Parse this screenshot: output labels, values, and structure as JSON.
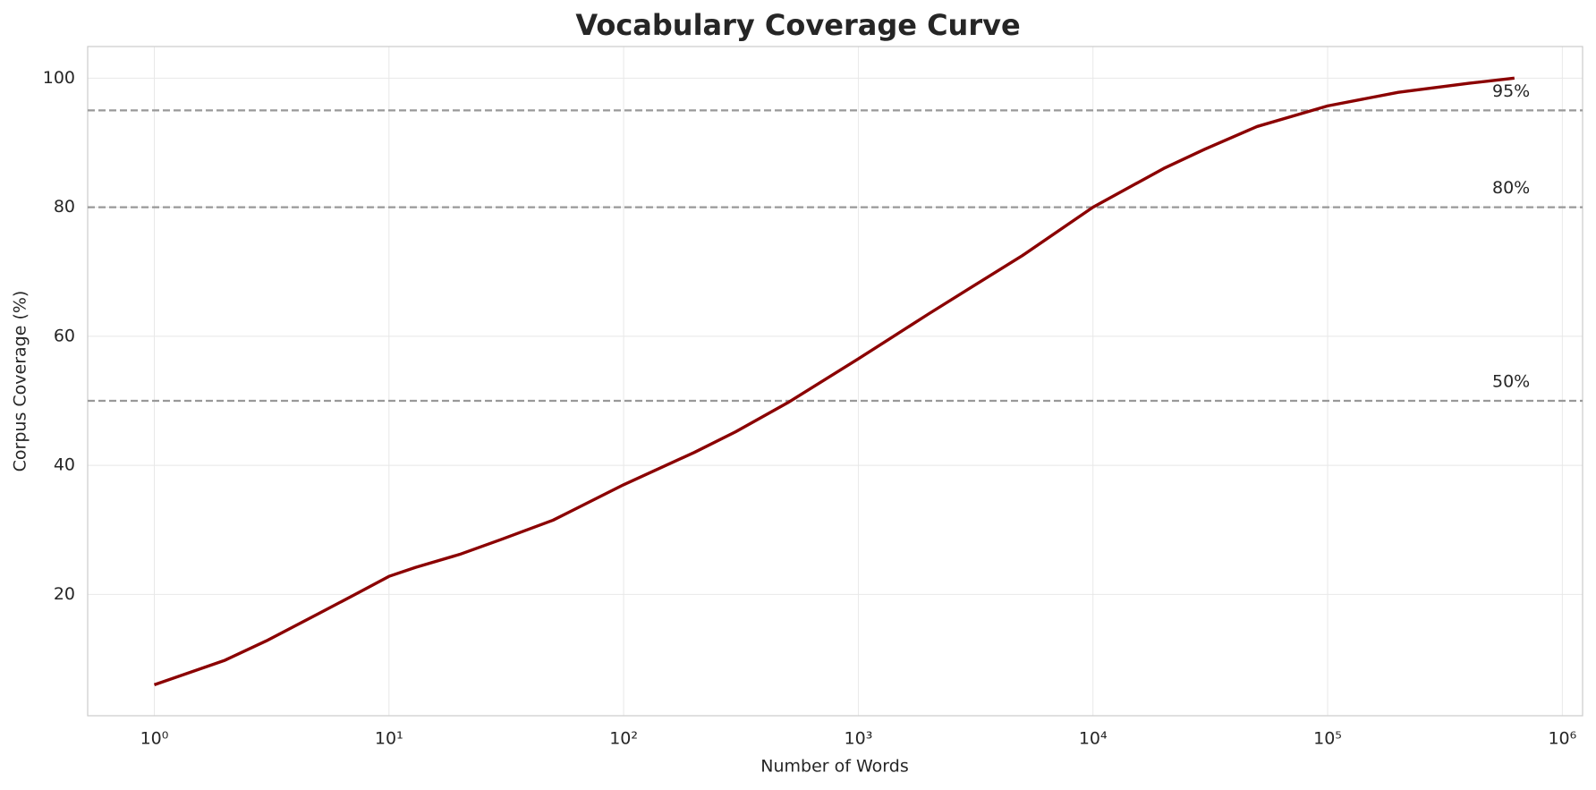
{
  "chart_data": {
    "type": "line",
    "title": "Vocabulary Coverage Curve",
    "xlabel": "Number of Words",
    "ylabel": "Corpus Coverage (%)",
    "xscale": "log",
    "grid": true,
    "x": [
      1,
      2,
      3,
      5,
      7,
      10,
      13,
      20,
      30,
      50,
      100,
      200,
      300,
      500,
      1000,
      2000,
      3000,
      5000,
      10000,
      20000,
      30000,
      50000,
      100000,
      200000,
      400000,
      625000
    ],
    "series": [
      {
        "color": "#8b0000",
        "values": [
          6,
          9.8,
          12.8,
          17,
          19.8,
          22.8,
          24.2,
          26.2,
          28.5,
          31.5,
          37,
          42,
          45.2,
          49.7,
          56.5,
          63.5,
          67.5,
          72.5,
          80,
          86,
          89,
          92.5,
          95.7,
          97.8,
          99.2,
          100
        ]
      }
    ],
    "xlim": [
      0.52,
      1220000
    ],
    "ylim": [
      1.2,
      104.9
    ],
    "xticks": [
      {
        "value": 1,
        "label": "10⁰"
      },
      {
        "value": 10,
        "label": "10¹"
      },
      {
        "value": 100,
        "label": "10²"
      },
      {
        "value": 1000,
        "label": "10³"
      },
      {
        "value": 10000,
        "label": "10⁴"
      },
      {
        "value": 100000,
        "label": "10⁵"
      },
      {
        "value": 1000000,
        "label": "10⁶"
      }
    ],
    "yticks": [
      20,
      40,
      60,
      80,
      100
    ],
    "reference_lines": [
      {
        "value": 50,
        "label": "50%"
      },
      {
        "value": 80,
        "label": "80%"
      },
      {
        "value": 95,
        "label": "95%"
      }
    ],
    "reference_color": "#999999"
  }
}
